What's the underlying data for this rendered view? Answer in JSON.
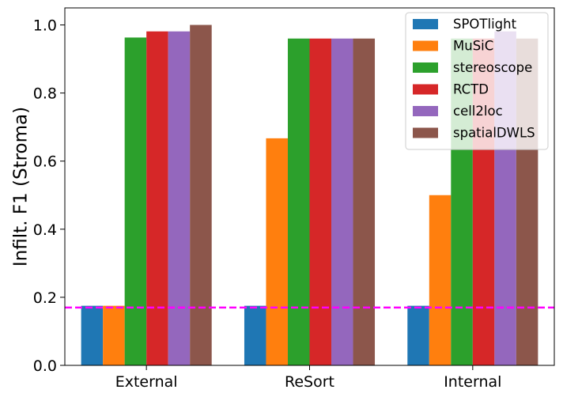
{
  "chart_data": {
    "type": "bar",
    "title": "",
    "xlabel": "",
    "ylabel": "Infilt. F1 (Stroma)",
    "ylim": [
      0,
      1.05
    ],
    "yticks": [
      "0.0",
      "0.2",
      "0.4",
      "0.6",
      "0.8",
      "1.0"
    ],
    "categories": [
      "External",
      "ReSort",
      "Internal"
    ],
    "series": [
      {
        "name": "SPOTlight",
        "color": "#1f77b4",
        "values": [
          0.175,
          0.175,
          0.175
        ]
      },
      {
        "name": "MuSiC",
        "color": "#ff7f0e",
        "values": [
          0.175,
          0.667,
          0.5
        ]
      },
      {
        "name": "stereoscope",
        "color": "#2ca02c",
        "values": [
          0.963,
          0.96,
          0.96
        ]
      },
      {
        "name": "RCTD",
        "color": "#d62728",
        "values": [
          0.981,
          0.96,
          0.96
        ]
      },
      {
        "name": "cell2loc",
        "color": "#9467bd",
        "values": [
          0.981,
          0.96,
          0.981
        ]
      },
      {
        "name": "spatialDWLS",
        "color": "#8c564b",
        "values": [
          1.0,
          0.96,
          0.96
        ]
      }
    ],
    "reference_line": {
      "value": 0.17,
      "color": "#ff00ff",
      "style": "dashed"
    },
    "legend_position": "top-right",
    "grid": false
  }
}
